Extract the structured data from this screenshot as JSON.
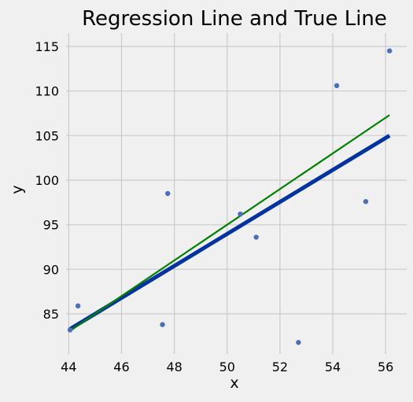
{
  "chart_data": {
    "type": "scatter",
    "title": "Regression Line and True Line",
    "xlabel": "x",
    "ylabel": "y",
    "xlim": [
      43.9,
      56.8
    ],
    "ylim": [
      80.5,
      116.5
    ],
    "x_ticks": [
      44,
      46,
      48,
      50,
      52,
      54,
      56
    ],
    "y_ticks": [
      85,
      90,
      95,
      100,
      105,
      110,
      115
    ],
    "grid": true,
    "legend": "none",
    "points": [
      {
        "x": 44.05,
        "y": 83.2
      },
      {
        "x": 44.35,
        "y": 85.9
      },
      {
        "x": 47.55,
        "y": 83.8
      },
      {
        "x": 47.75,
        "y": 98.5
      },
      {
        "x": 50.5,
        "y": 96.2
      },
      {
        "x": 51.1,
        "y": 93.6
      },
      {
        "x": 52.7,
        "y": 81.8
      },
      {
        "x": 54.15,
        "y": 110.6
      },
      {
        "x": 55.25,
        "y": 97.6
      },
      {
        "x": 56.15,
        "y": 114.5
      }
    ],
    "lines": [
      {
        "x": [
          44.05,
          56.15
        ],
        "y": [
          83.3,
          105.0
        ],
        "color": "#0033a0",
        "width": 5
      },
      {
        "x": [
          44.05,
          56.15
        ],
        "y": [
          83.1,
          107.3
        ],
        "color": "#008000",
        "width": 2.2
      }
    ],
    "point_color": "#4a6fb5",
    "grid_color": "#cbcbcb"
  }
}
